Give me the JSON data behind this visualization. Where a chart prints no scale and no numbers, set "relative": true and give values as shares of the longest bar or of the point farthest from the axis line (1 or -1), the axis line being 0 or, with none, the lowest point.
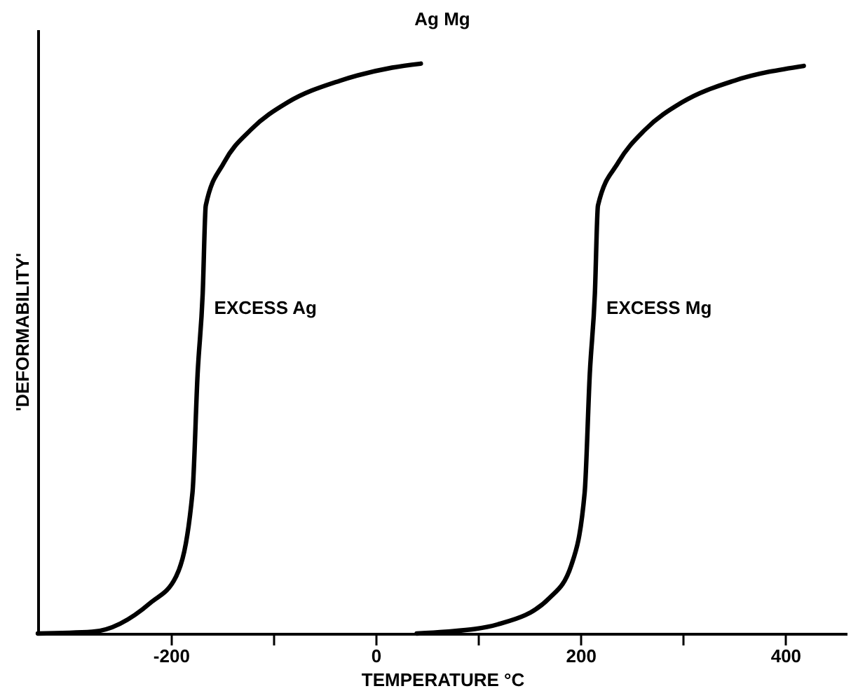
{
  "chart_data": {
    "type": "line",
    "title": "Ag Mg",
    "xlabel": "TEMPERATURE °C",
    "ylabel": "'DEFORMABILITY'",
    "relative": true,
    "xlim": [
      -330,
      460
    ],
    "xticks": [
      -200,
      {
        "value": -100,
        "label": null
      },
      0,
      {
        "value": 100,
        "label": null
      },
      200,
      {
        "value": 300,
        "label": null
      },
      400
    ],
    "series": [
      {
        "color": "#000000",
        "x": [
          -330,
          -277,
          -220,
          -195,
          -179,
          -174,
          -169,
          -166,
          -148,
          -122,
          -86,
          -35,
          16,
          44
        ],
        "values": [
          0,
          0.003,
          0.054,
          0.1,
          0.247,
          0.455,
          0.597,
          0.751,
          0.827,
          0.884,
          0.932,
          0.97,
          0.993,
          1
        ]
      },
      {
        "color": "#000000",
        "x": [
          40,
          68,
          119,
          170,
          191,
          204,
          209,
          214,
          217,
          237,
          263,
          299,
          350,
          418
        ],
        "values": [
          0,
          0.003,
          0.016,
          0.063,
          0.12,
          0.247,
          0.455,
          0.597,
          0.751,
          0.827,
          0.884,
          0.932,
          0.97,
          0.996
        ]
      }
    ],
    "annotations": [
      {
        "text": "EXCESS Ag",
        "x": -166,
        "y": 0.57
      },
      {
        "text": "EXCESS Mg",
        "x": 217,
        "y": 0.57
      }
    ],
    "line_style": "solid",
    "marker": "none",
    "grid": false
  }
}
